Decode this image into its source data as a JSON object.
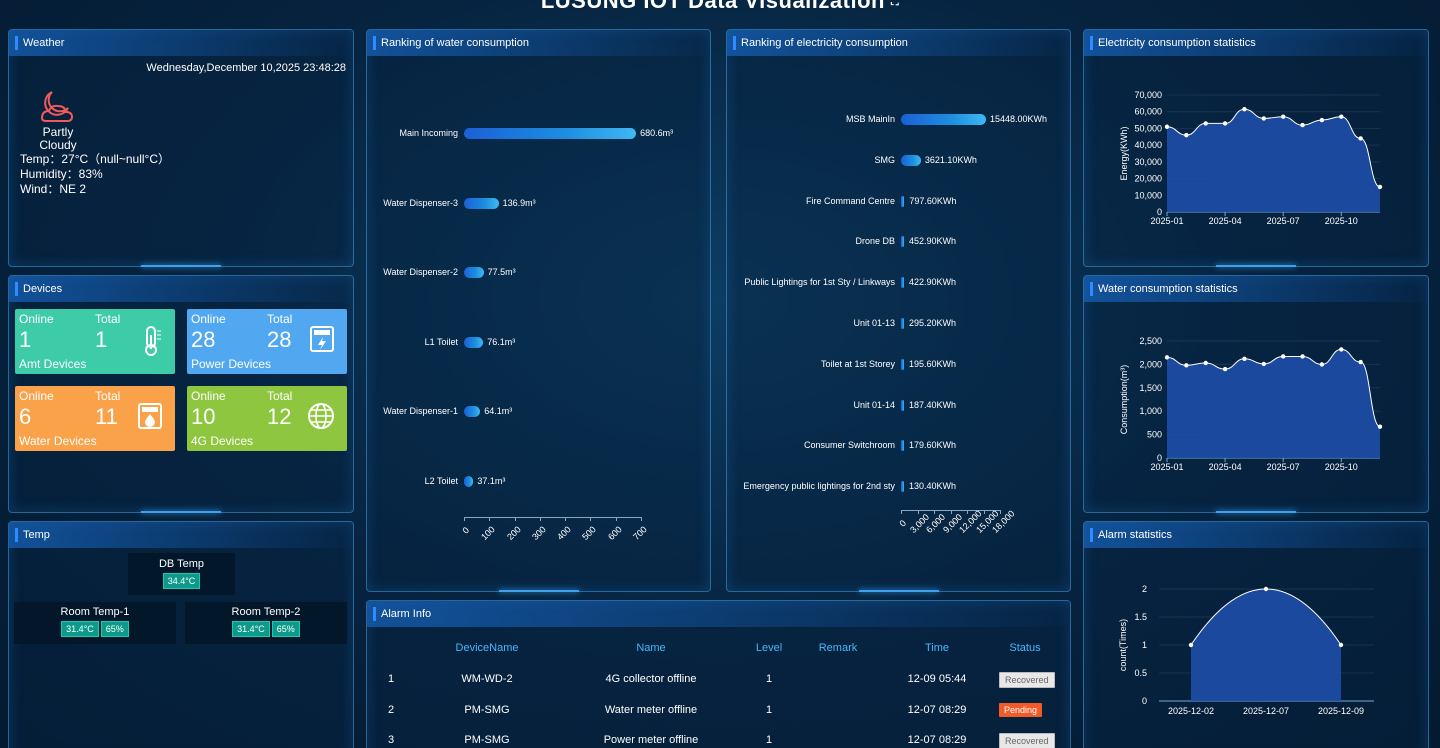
{
  "title": "LUSUNG IOT Data Visualization",
  "weather": {
    "title": "Weather",
    "datetime": "Wednesday,December 10,2025 23:48:28",
    "desc": "Partly Cloudy",
    "temp": "Temp：27°C（null~null°C）",
    "humidity": "Humidity：83%",
    "wind": "Wind：NE 2"
  },
  "devices": {
    "title": "Devices",
    "online_label": "Online",
    "total_label": "Total",
    "cards": [
      {
        "online": "1",
        "total": "1",
        "name": "Amt Devices",
        "color": "#3ecba8",
        "icon": "thermometer-icon"
      },
      {
        "online": "28",
        "total": "28",
        "name": "Power Devices",
        "color": "#52a8f0",
        "icon": "power-meter-icon"
      },
      {
        "online": "6",
        "total": "11",
        "name": "Water Devices",
        "color": "#f9a24a",
        "icon": "water-meter-icon"
      },
      {
        "online": "10",
        "total": "12",
        "name": "4G Devices",
        "color": "#8ec63f",
        "icon": "globe-icon"
      }
    ]
  },
  "temp": {
    "title": "Temp",
    "db": {
      "name": "DB Temp",
      "temp": "34.4°C"
    },
    "room1": {
      "name": "Room Temp-1",
      "temp": "31.4°C",
      "hum": "65%"
    },
    "room2": {
      "name": "Room Temp-2",
      "temp": "31.4°C",
      "hum": "65%"
    }
  },
  "water_rank": {
    "title": "Ranking of water consumption",
    "items": [
      {
        "label": "Main Incoming",
        "value": 680.6,
        "text": "680.6m³"
      },
      {
        "label": "Water Dispenser-3",
        "value": 136.9,
        "text": "136.9m³"
      },
      {
        "label": "Water Dispenser-2",
        "value": 77.5,
        "text": "77.5m³"
      },
      {
        "label": "L1 Toilet",
        "value": 76.1,
        "text": "76.1m³"
      },
      {
        "label": "Water Dispenser-1",
        "value": 64.1,
        "text": "64.1m³"
      },
      {
        "label": "L2 Toilet",
        "value": 37.1,
        "text": "37.1m³"
      }
    ],
    "ticks": [
      "0",
      "100",
      "200",
      "300",
      "400",
      "500",
      "600",
      "700"
    ],
    "max": 700
  },
  "elec_rank": {
    "title": "Ranking of electricity consumption",
    "items": [
      {
        "label": "MSB MainIn",
        "value": 15448.0,
        "text": "15448.00KWh"
      },
      {
        "label": "SMG",
        "value": 3621.1,
        "text": "3621.10KWh"
      },
      {
        "label": "Fire Command Centre",
        "value": 797.6,
        "text": "797.60KWh"
      },
      {
        "label": "Drone DB",
        "value": 452.9,
        "text": "452.90KWh"
      },
      {
        "label": "Public Lightings for 1st Sty / Linkways",
        "value": 422.9,
        "text": "422.90KWh"
      },
      {
        "label": "Unit 01-13",
        "value": 295.2,
        "text": "295.20KWh"
      },
      {
        "label": "Toilet at 1st Storey",
        "value": 195.6,
        "text": "195.60KWh"
      },
      {
        "label": "Unit 01-14",
        "value": 187.4,
        "text": "187.40KWh"
      },
      {
        "label": "Consumer Switchroom",
        "value": 179.6,
        "text": "179.60KWh"
      },
      {
        "label": "Emergency public lightings for 2nd sty",
        "value": 130.4,
        "text": "130.40KWh"
      }
    ],
    "ticks": [
      "0",
      "3,000",
      "6,000",
      "9,000",
      "12,000",
      "15,000",
      "18,000"
    ],
    "max": 18000
  },
  "alarm": {
    "title": "Alarm Info",
    "headers": [
      "DeviceName",
      "Name",
      "Level",
      "Remark",
      "Time",
      "Status"
    ],
    "rows": [
      {
        "no": "1",
        "device": "WM-WD-2",
        "name": "4G collector offline",
        "level": "1",
        "remark": "",
        "time": "12-09 05:44",
        "status": "Recovered"
      },
      {
        "no": "2",
        "device": "PM-SMG",
        "name": "Water meter offline",
        "level": "1",
        "remark": "",
        "time": "12-07 08:29",
        "status": "Pending"
      },
      {
        "no": "3",
        "device": "PM-SMG",
        "name": "Power meter offline",
        "level": "1",
        "remark": "",
        "time": "12-07 08:29",
        "status": "Recovered"
      }
    ]
  },
  "chart_data": [
    {
      "type": "area",
      "title": "Electricity consumption statistics",
      "ylabel": "Energy(KWh)",
      "xlabel": "",
      "x": [
        "2025-01",
        "2025-02",
        "2025-03",
        "2025-04",
        "2025-05",
        "2025-06",
        "2025-07",
        "2025-08",
        "2025-09",
        "2025-10",
        "2025-11",
        "2025-12"
      ],
      "xticks": [
        "2025-01",
        "2025-04",
        "2025-07",
        "2025-10"
      ],
      "yticks": [
        "0",
        "10,000",
        "20,000",
        "30,000",
        "40,000",
        "50,000",
        "60,000",
        "70,000"
      ],
      "ylim": [
        0,
        70000
      ],
      "series": [
        {
          "values": [
            51000,
            46000,
            53000,
            53000,
            61500,
            56000,
            57000,
            52000,
            55000,
            57000,
            44000,
            15000
          ]
        }
      ],
      "color": "#1e4ea8"
    },
    {
      "type": "area",
      "title": "Water consumption statistics",
      "ylabel": "Consumption(m³)",
      "xlabel": "",
      "x": [
        "2025-01",
        "2025-02",
        "2025-03",
        "2025-04",
        "2025-05",
        "2025-06",
        "2025-07",
        "2025-08",
        "2025-09",
        "2025-10",
        "2025-11",
        "2025-12"
      ],
      "xticks": [
        "2025-01",
        "2025-04",
        "2025-07",
        "2025-10"
      ],
      "yticks": [
        "0",
        "500",
        "1,000",
        "1,500",
        "2,000",
        "2,500"
      ],
      "ylim": [
        0,
        2500
      ],
      "series": [
        {
          "values": [
            2150,
            1980,
            2030,
            1900,
            2120,
            2010,
            2170,
            2170,
            2000,
            2320,
            2050,
            670
          ]
        }
      ],
      "color": "#1e4ea8"
    },
    {
      "type": "area",
      "title": "Alarm statistics",
      "ylabel": "count(Times)",
      "xlabel": "",
      "x": [
        "2025-12-02",
        "2025-12-07",
        "2025-12-09"
      ],
      "xticks": [
        "2025-12-02",
        "2025-12-07",
        "2025-12-09"
      ],
      "yticks": [
        "0",
        "0.5",
        "1",
        "1.5",
        "2"
      ],
      "ylim": [
        0,
        2
      ],
      "series": [
        {
          "values": [
            1,
            2,
            1
          ]
        }
      ],
      "color": "#1e4ea8"
    }
  ]
}
